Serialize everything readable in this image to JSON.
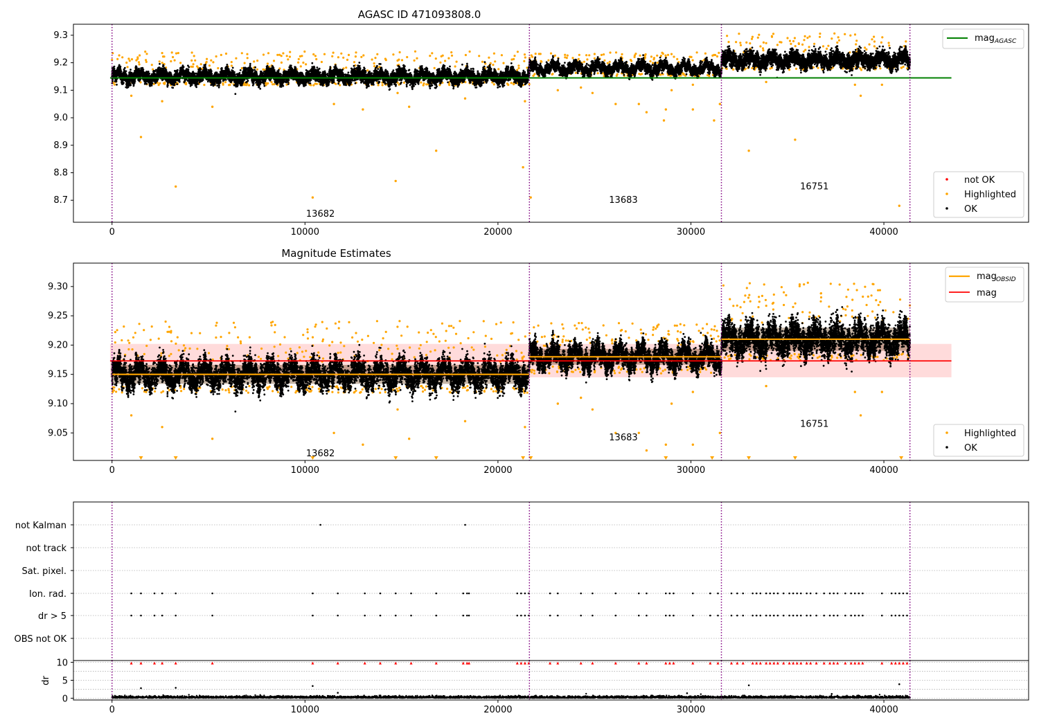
{
  "figure": {
    "title_top": "AGASC ID 471093808.0",
    "title_mid": "Magnitude Estimates"
  },
  "colors": {
    "ok": "#000000",
    "highlighted": "#ffa500",
    "not_ok": "#ff0000",
    "agasc_line": "#008000",
    "obs_mag": "#ffa500",
    "mag_line": "#ff0000",
    "mag_band": "#ffcccc",
    "obs_boundary": "#800080",
    "grid": "#b0b0b0"
  },
  "chart_data": [
    {
      "type": "scatter",
      "title": "AGASC ID 471093808.0",
      "xlim": [
        -2000,
        47500
      ],
      "ylim": [
        8.62,
        9.34
      ],
      "x_ticks": [
        0,
        10000,
        20000,
        30000,
        40000
      ],
      "y_ticks": [
        8.7,
        8.8,
        8.9,
        9.0,
        9.1,
        9.2,
        9.3
      ],
      "y_tick_labels": [
        "8.7",
        "8.8",
        "8.9",
        "9.0",
        "9.1",
        "9.2",
        "9.3"
      ],
      "obs_boundaries": [
        0,
        21630,
        31580,
        41350
      ],
      "obsids": [
        {
          "label": "13682",
          "x": 10800,
          "y": 8.65
        },
        {
          "label": "13683",
          "x": 26500,
          "y": 8.7
        },
        {
          "label": "16751",
          "x": 36400,
          "y": 8.75
        }
      ],
      "series": [
        {
          "name": "not OK",
          "role": "not_ok"
        },
        {
          "name": "Highlighted",
          "role": "highlighted"
        },
        {
          "name": "OK",
          "role": "ok"
        }
      ],
      "agasc_mag": {
        "value": 9.145,
        "x_range": [
          -100,
          43500
        ],
        "legend": "mag",
        "legend_sub": "AGASC"
      },
      "segments": [
        {
          "x0": 0,
          "x1": 21630,
          "center": 9.15,
          "spread": 0.018,
          "upper_tail": 0.07
        },
        {
          "x0": 21630,
          "x1": 31580,
          "center": 9.18,
          "spread": 0.015,
          "upper_tail": 0.04
        },
        {
          "x0": 31580,
          "x1": 41350,
          "center": 9.21,
          "spread": 0.022,
          "upper_tail": 0.07
        }
      ],
      "outliers": [
        {
          "x": 1500,
          "y": 8.93
        },
        {
          "x": 3300,
          "y": 8.75
        },
        {
          "x": 10400,
          "y": 8.71
        },
        {
          "x": 14700,
          "y": 8.77
        },
        {
          "x": 16800,
          "y": 8.88
        },
        {
          "x": 21300,
          "y": 8.82
        },
        {
          "x": 21700,
          "y": 8.71
        },
        {
          "x": 28600,
          "y": 8.99
        },
        {
          "x": 31200,
          "y": 8.99
        },
        {
          "x": 33000,
          "y": 8.88
        },
        {
          "x": 35400,
          "y": 8.92
        },
        {
          "x": 40800,
          "y": 8.68
        },
        {
          "x": 1000,
          "y": 9.08
        },
        {
          "x": 2600,
          "y": 9.06
        },
        {
          "x": 5200,
          "y": 9.04
        },
        {
          "x": 11500,
          "y": 9.05
        },
        {
          "x": 13000,
          "y": 9.03
        },
        {
          "x": 14800,
          "y": 9.09
        },
        {
          "x": 15400,
          "y": 9.04
        },
        {
          "x": 18300,
          "y": 9.07
        },
        {
          "x": 21400,
          "y": 9.06
        },
        {
          "x": 23100,
          "y": 9.1
        },
        {
          "x": 24300,
          "y": 9.11
        },
        {
          "x": 24900,
          "y": 9.09
        },
        {
          "x": 26100,
          "y": 9.05
        },
        {
          "x": 27300,
          "y": 9.05
        },
        {
          "x": 27700,
          "y": 9.02
        },
        {
          "x": 28700,
          "y": 9.03
        },
        {
          "x": 29000,
          "y": 9.1
        },
        {
          "x": 30100,
          "y": 9.03
        },
        {
          "x": 30100,
          "y": 9.12
        },
        {
          "x": 31500,
          "y": 9.05
        },
        {
          "x": 33900,
          "y": 9.13
        },
        {
          "x": 38500,
          "y": 9.12
        },
        {
          "x": 38800,
          "y": 9.08
        },
        {
          "x": 39900,
          "y": 9.12
        }
      ]
    },
    {
      "type": "scatter",
      "title": "Magnitude Estimates",
      "xlim": [
        -2000,
        47500
      ],
      "ylim": [
        9.003,
        9.34
      ],
      "x_ticks": [
        0,
        10000,
        20000,
        30000,
        40000
      ],
      "y_ticks": [
        9.05,
        9.1,
        9.15,
        9.2,
        9.25,
        9.3
      ],
      "y_tick_labels": [
        "9.05",
        "9.10",
        "9.15",
        "9.20",
        "9.25",
        "9.30"
      ],
      "obs_boundaries": [
        0,
        21630,
        31580,
        41350
      ],
      "obsids": [
        {
          "label": "13682",
          "x": 10800,
          "y": 9.015
        },
        {
          "label": "13683",
          "x": 26500,
          "y": 9.042
        },
        {
          "label": "16751",
          "x": 36400,
          "y": 9.065
        }
      ],
      "series": [
        {
          "name": "Highlighted",
          "role": "highlighted"
        },
        {
          "name": "OK",
          "role": "ok"
        }
      ],
      "mag": {
        "value": 9.173,
        "band": [
          9.145,
          9.202
        ],
        "x_range": [
          -100,
          43500
        ],
        "legend": "mag"
      },
      "obs_mag": {
        "legend": "mag",
        "legend_sub": "OBSID",
        "values": [
          {
            "x0": 0,
            "x1": 21630,
            "y": 9.15
          },
          {
            "x0": 21630,
            "x1": 31580,
            "y": 9.18
          },
          {
            "x0": 31580,
            "x1": 41350,
            "y": 9.21
          }
        ]
      },
      "down_markers_x": [
        1500,
        3300,
        10400,
        14700,
        16800,
        21300,
        21700,
        28700,
        31100,
        33000,
        35400,
        40900
      ]
    },
    {
      "type": "scatter",
      "title": "",
      "xlim": [
        -2000,
        47500
      ],
      "categories": [
        "not Kalman",
        "not track",
        "Sat. pixel.",
        "Ion. rad.",
        "dr > 5",
        "OBS not OK"
      ],
      "obs_boundaries": [
        0,
        21630,
        31580,
        41350
      ],
      "flag_events": {
        "not Kalman": [
          10800,
          18300
        ],
        "Ion. rad.": [
          1000,
          1500,
          2200,
          2600,
          3300,
          5200,
          10400,
          11700,
          13100,
          13900,
          14700,
          15500,
          16800,
          18200,
          18400,
          18500,
          21000,
          21200,
          21400,
          21600,
          22700,
          23100,
          24300,
          24900,
          26100,
          27300,
          27700,
          28700,
          28900,
          29100,
          30100,
          31000,
          31400,
          32100,
          32400,
          32700,
          33200,
          33400,
          33600,
          33900,
          34100,
          34300,
          34500,
          34800,
          35100,
          35300,
          35500,
          35700,
          36000,
          36200,
          36500,
          36900,
          37200,
          37400,
          37600,
          38000,
          38300,
          38500,
          38700,
          38900,
          39900,
          40400,
          40600,
          40800,
          41000,
          41200
        ],
        "dr > 5": [
          1000,
          1500,
          2200,
          2600,
          3300,
          5200,
          10400,
          11700,
          13100,
          13900,
          14700,
          15500,
          16800,
          18200,
          18400,
          18500,
          21000,
          21200,
          21400,
          21600,
          22700,
          23100,
          24300,
          24900,
          26100,
          27300,
          27700,
          28700,
          28900,
          29100,
          30100,
          31000,
          31400,
          32100,
          32400,
          32700,
          33200,
          33400,
          33600,
          33900,
          34100,
          34300,
          34500,
          34800,
          35100,
          35300,
          35500,
          35700,
          36000,
          36200,
          36500,
          36900,
          37200,
          37400,
          37600,
          38000,
          38300,
          38500,
          38700,
          38900,
          39900,
          40400,
          40600,
          40800,
          41000,
          41200
        ]
      }
    },
    {
      "type": "scatter",
      "ylabel": "dr",
      "xlim": [
        -2000,
        47500
      ],
      "ylim": [
        -0.5,
        10.5
      ],
      "x_ticks": [
        0,
        10000,
        20000,
        30000,
        40000
      ],
      "x_tick_labels": [
        "0",
        "10000",
        "20000",
        "30000",
        "40000"
      ],
      "y_ticks": [
        0,
        5,
        10
      ],
      "y_tick_labels": [
        "0",
        "5",
        "10"
      ],
      "obs_boundaries": [
        0,
        21630,
        31580,
        41350
      ],
      "clipped_marker_y": 9.8,
      "dr_outliers": [
        {
          "x": 1500,
          "y": 2.8
        },
        {
          "x": 3300,
          "y": 2.9
        },
        {
          "x": 10400,
          "y": 3.4
        },
        {
          "x": 11700,
          "y": 1.5
        },
        {
          "x": 33000,
          "y": 3.6
        },
        {
          "x": 40800,
          "y": 3.9
        },
        {
          "x": 29800,
          "y": 1.4
        },
        {
          "x": 37300,
          "y": 1.2
        }
      ]
    }
  ]
}
